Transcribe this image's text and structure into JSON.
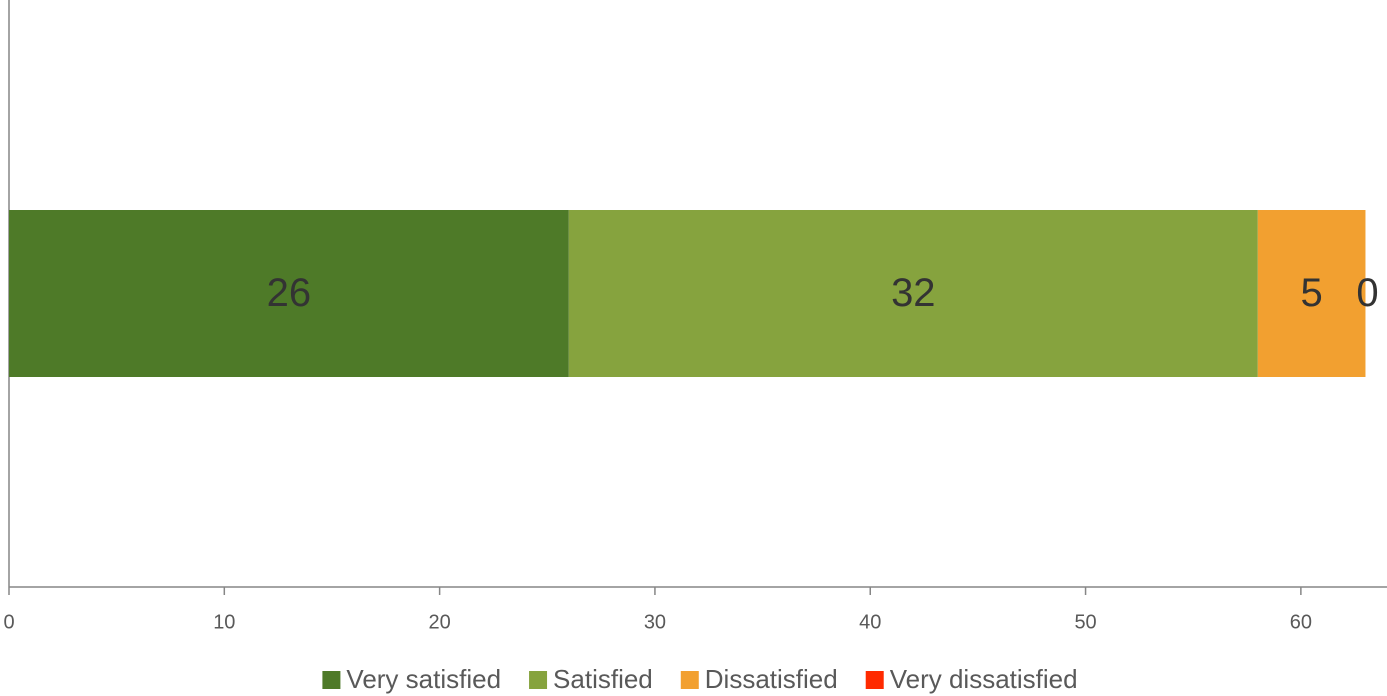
{
  "chart_data": {
    "type": "stacked-barh",
    "categories": [
      null
    ],
    "series": [
      {
        "name": "Very satisfied",
        "color": "#4e7a28",
        "values": [
          26
        ]
      },
      {
        "name": "Satisfied",
        "color": "#86a33e",
        "values": [
          32
        ]
      },
      {
        "name": "Dissatisfied",
        "color": "#f2a030",
        "values": [
          5
        ]
      },
      {
        "name": "Very dissatisfied",
        "color": "#ff2a00",
        "values": [
          0
        ]
      }
    ],
    "xlim": [
      0,
      64
    ],
    "xticks": [
      0,
      10,
      20,
      30,
      40,
      50,
      60
    ],
    "legend": "bottom"
  }
}
